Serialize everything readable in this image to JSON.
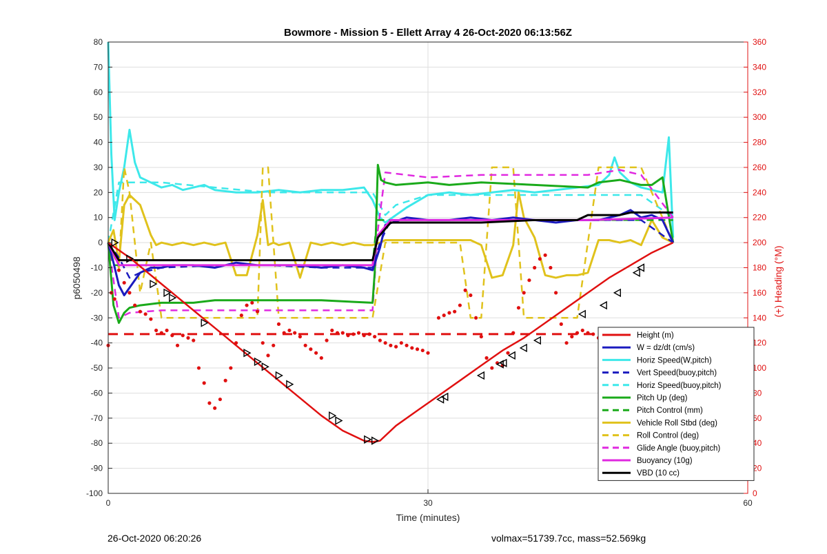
{
  "figure": {
    "footer_left": "26-Oct-2020 06:20:26",
    "footer_right": "volmax=51739.7cc, mass=52.569kg"
  },
  "colors": {
    "height": "#e01010",
    "w": "#1b1bbf",
    "horiz_speed": "#3de8ea",
    "pitch": "#1aaa1a",
    "roll": "#e0c21c",
    "glide": "#e028e0",
    "buoyancy": "#e028e0",
    "vbd": "#000000",
    "heading": "#e01010",
    "right_axis": "#e01010"
  },
  "chart_data": {
    "type": "line",
    "title": "Bowmore - Mission 5 - Ellett Array 4 26-Oct-2020 06:13:56Z",
    "xlabel": "Time (minutes)",
    "ylabel": "p6050498",
    "y2label": "(+) Heading (°M)",
    "xlim": [
      0,
      60
    ],
    "ylim": [
      -100,
      80
    ],
    "y2lim": [
      0,
      360
    ],
    "xticks": [
      0,
      30,
      60
    ],
    "yticks": [
      -100,
      -90,
      -80,
      -70,
      -60,
      -50,
      -40,
      -30,
      -20,
      -10,
      0,
      10,
      20,
      30,
      40,
      50,
      60,
      70,
      80
    ],
    "y2ticks": [
      0,
      20,
      40,
      60,
      80,
      100,
      120,
      140,
      160,
      180,
      200,
      220,
      240,
      260,
      280,
      300,
      320,
      340,
      360
    ],
    "grid": true,
    "legend_position": "bottom-right",
    "legend": [
      {
        "label": "Height (m)",
        "color": "#e01010",
        "dash": false
      },
      {
        "label": "W = dz/dt (cm/s)",
        "color": "#1b1bbf",
        "dash": false
      },
      {
        "label": "Horiz Speed(W,pitch)",
        "color": "#3de8ea",
        "dash": false
      },
      {
        "label": "Vert Speed(buoy,pitch)",
        "color": "#1b1bbf",
        "dash": true
      },
      {
        "label": "Horiz Speed(buoy,pitch)",
        "color": "#3de8ea",
        "dash": true
      },
      {
        "label": "Pitch Up (deg)",
        "color": "#1aaa1a",
        "dash": false
      },
      {
        "label": "Pitch Control (mm)",
        "color": "#1aaa1a",
        "dash": true
      },
      {
        "label": "Vehicle Roll Stbd (deg)",
        "color": "#e0c21c",
        "dash": false
      },
      {
        "label": "Roll Control (deg)",
        "color": "#e0c21c",
        "dash": true
      },
      {
        "label": "Glide Angle (buoy,pitch)",
        "color": "#e028e0",
        "dash": true
      },
      {
        "label": "Buoyancy (10g)",
        "color": "#e028e0",
        "dash": false
      },
      {
        "label": "VBD (10 cc)",
        "color": "#000000",
        "dash": false
      }
    ],
    "series": [
      {
        "name": "Height (m)",
        "axis": "left",
        "style": "solid",
        "color": "#e01010",
        "x": [
          0,
          2,
          4,
          6,
          8,
          10,
          12,
          14,
          16,
          18,
          20,
          22,
          24,
          24.8,
          25.5,
          27,
          29,
          31,
          33,
          35,
          37,
          39,
          41,
          43,
          45,
          47,
          49,
          51,
          53
        ],
        "y": [
          0,
          -6,
          -13,
          -20,
          -27,
          -34,
          -41,
          -48,
          -55,
          -62,
          -69,
          -75,
          -79,
          -79.5,
          -79,
          -73,
          -67,
          -61,
          -55,
          -49,
          -43,
          -38,
          -32,
          -26,
          -20,
          -14,
          -9,
          -4,
          0
        ]
      },
      {
        "name": "Height markers",
        "axis": "left",
        "style": "markers",
        "color": "#000000",
        "x": [
          0.6,
          2,
          4.2,
          5.5,
          6,
          9,
          13,
          14,
          14.7,
          16,
          17,
          21,
          21.6,
          24.3,
          25,
          31.2,
          31.6,
          35,
          36.8,
          37.1,
          37.9,
          39,
          40.3,
          44.5,
          46.5,
          47.8,
          49.6,
          50
        ],
        "y": [
          0,
          -6.4,
          -16.5,
          -20,
          -22,
          -32,
          -44,
          -47.5,
          -49.5,
          -53,
          -56.5,
          -69,
          -71,
          -78.5,
          -79,
          -62.5,
          -61.5,
          -53,
          -48.5,
          -48,
          -45,
          -42,
          -39,
          -28.5,
          -25,
          -20,
          -12,
          -10
        ]
      },
      {
        "name": "W = dz/dt (cm/s)",
        "axis": "left",
        "style": "solid",
        "color": "#1b1bbf",
        "x": [
          0,
          0.5,
          1,
          1.5,
          2,
          3,
          4,
          5,
          6,
          8,
          10,
          12,
          14,
          16,
          18,
          20,
          22,
          24,
          24.8,
          25.5,
          26,
          28,
          30,
          32,
          34,
          36,
          38,
          40,
          42,
          44,
          46,
          48,
          49,
          50,
          51,
          52,
          53
        ],
        "y": [
          0,
          -8,
          -17,
          -21,
          -18,
          -12,
          -10,
          -10,
          -9,
          -9,
          -10,
          -8,
          -9,
          -9,
          -9,
          -10,
          -9,
          -10,
          -11,
          -2,
          7,
          10,
          9,
          9,
          10,
          9,
          10,
          9,
          8,
          9,
          9,
          11,
          13,
          10,
          11,
          9,
          0
        ]
      },
      {
        "name": "Horiz Speed(W,pitch)",
        "axis": "left",
        "style": "solid",
        "color": "#3de8ea",
        "x": [
          0,
          0.3,
          0.6,
          1,
          1.5,
          2,
          2.5,
          3,
          4,
          5,
          6,
          7,
          8,
          9,
          10,
          12,
          14,
          16,
          18,
          20,
          22,
          24,
          24.8,
          25.5,
          26,
          28,
          30,
          32,
          34,
          36,
          38,
          40,
          42,
          44,
          46,
          47,
          47.5,
          48,
          49,
          50,
          51,
          52,
          52.6,
          53
        ],
        "y": [
          80,
          35,
          9,
          20,
          30,
          45,
          32,
          26,
          24,
          22,
          23,
          21,
          22,
          23,
          21,
          20,
          20,
          21,
          20,
          21,
          21,
          22,
          17,
          10,
          8,
          14,
          19,
          20,
          19,
          20,
          21,
          20,
          21,
          22,
          23,
          27,
          34,
          28,
          24,
          22,
          21,
          20,
          42,
          2
        ]
      },
      {
        "name": "Vert Speed(buoy,pitch)",
        "axis": "left",
        "style": "dashed",
        "color": "#1b1bbf",
        "x": [
          0,
          1,
          2,
          3,
          5,
          10,
          15,
          20,
          24.8,
          25.5,
          26.5,
          30,
          35,
          40,
          45,
          50,
          53
        ],
        "y": [
          0,
          -6,
          -14,
          -12,
          -10,
          -9,
          -9,
          -10,
          -10,
          0,
          9,
          9,
          9,
          9,
          9,
          9,
          0
        ]
      },
      {
        "name": "Horiz Speed(buoy,pitch)",
        "axis": "left",
        "style": "dashed",
        "color": "#3de8ea",
        "x": [
          0,
          1,
          2,
          5,
          10,
          15,
          20,
          24.8,
          26,
          27,
          30,
          35,
          40,
          45,
          50,
          53
        ],
        "y": [
          0,
          24,
          24,
          24,
          22,
          20,
          20,
          20,
          11,
          15,
          19,
          19,
          19,
          19,
          19,
          10
        ]
      },
      {
        "name": "Pitch Up (deg)",
        "axis": "left",
        "style": "solid",
        "color": "#1aaa1a",
        "x": [
          0,
          0.5,
          1,
          1.5,
          2,
          3,
          5,
          8,
          10,
          15,
          20,
          24.8,
          25,
          25.3,
          25.6,
          26,
          27,
          30,
          32,
          35,
          40,
          45,
          46,
          48,
          50,
          51,
          52,
          53
        ],
        "y": [
          0,
          -25,
          -32,
          -28,
          -26,
          -25,
          -24,
          -24,
          -23,
          -23,
          -23,
          -24,
          -12,
          31,
          25,
          24,
          23,
          24,
          23,
          24,
          23,
          22,
          24,
          25,
          23,
          23,
          26,
          0
        ]
      },
      {
        "name": "Pitch Control (mm)",
        "axis": "left",
        "style": "dashed",
        "color": "#1aaa1a",
        "x": [
          0,
          0.5,
          1,
          24.8,
          25.2,
          26,
          53
        ],
        "y": [
          0,
          -9,
          -9,
          -9,
          9,
          9,
          9
        ]
      },
      {
        "name": "Vehicle Roll Stbd (deg)",
        "axis": "left",
        "style": "solid",
        "color": "#e0c21c",
        "x": [
          0,
          0.5,
          1,
          1.5,
          2,
          3,
          4,
          4.5,
          5,
          6,
          7,
          8,
          9,
          10,
          11,
          12,
          13,
          14,
          14.5,
          15,
          15.5,
          16,
          17,
          18,
          19,
          20,
          21,
          22,
          23,
          24,
          24.8,
          25.5,
          26,
          28,
          30,
          34,
          35,
          36,
          37,
          38,
          38.5,
          39,
          40,
          41,
          42,
          43,
          44,
          45,
          46,
          47,
          48,
          49,
          50,
          51,
          52,
          53
        ],
        "y": [
          0,
          5,
          -8,
          15,
          19,
          15,
          3,
          -1,
          0,
          -1,
          0,
          -1,
          0,
          -1,
          0,
          -13,
          -13,
          3,
          17,
          -1,
          0,
          -1,
          0,
          -14,
          0,
          -1,
          0,
          -1,
          0,
          -1,
          -1,
          0,
          1,
          1,
          1,
          1,
          -1,
          -14,
          -13,
          -1,
          20,
          10,
          2,
          -13,
          -14,
          -13,
          -13,
          -12,
          1,
          1,
          0,
          1,
          -1,
          9,
          2,
          0
        ]
      },
      {
        "name": "Roll Control (deg)",
        "axis": "left",
        "style": "dashed",
        "color": "#e0c21c",
        "x": [
          0,
          1,
          1.5,
          2,
          3,
          4,
          5,
          6,
          8,
          10,
          12,
          14,
          14.5,
          15,
          16,
          18,
          20,
          22,
          24.8,
          26,
          28,
          30,
          33,
          34,
          35,
          36,
          38,
          39,
          40,
          42,
          44,
          45,
          46,
          48,
          50,
          53
        ],
        "y": [
          0,
          -10,
          30,
          20,
          -20,
          0,
          -30,
          -30,
          -30,
          -30,
          -30,
          -30,
          30,
          30,
          -30,
          -30,
          -30,
          -30,
          -30,
          0,
          0,
          0,
          0,
          -30,
          -30,
          30,
          30,
          -30,
          -30,
          -30,
          -30,
          0,
          30,
          30,
          30,
          0
        ]
      },
      {
        "name": "Glide Angle (buoy,pitch)",
        "axis": "left",
        "style": "dashed",
        "color": "#e028e0",
        "x": [
          0,
          1,
          2,
          5,
          10,
          15,
          20,
          24.8,
          25.3,
          26,
          28,
          30,
          35,
          40,
          45,
          48,
          50,
          53
        ],
        "y": [
          0,
          -30,
          -28,
          -27,
          -27,
          -27,
          -27,
          -27,
          5,
          28,
          27,
          26,
          27,
          27,
          27,
          29,
          27,
          10
        ]
      },
      {
        "name": "Buoyancy (10g)",
        "axis": "left",
        "style": "solid",
        "color": "#e028e0",
        "x": [
          0,
          1,
          24.8,
          25.3,
          26.5,
          45,
          53
        ],
        "y": [
          0,
          -9,
          -9,
          3,
          9,
          9,
          10
        ]
      },
      {
        "name": "VBD (10 cc)",
        "axis": "left",
        "style": "solid",
        "color": "#000000",
        "x": [
          0,
          1,
          24.8,
          25.3,
          26.5,
          30,
          35,
          40,
          44,
          45,
          48,
          49,
          53
        ],
        "y": [
          0,
          -7,
          -7,
          2,
          8,
          8,
          8,
          9,
          9,
          11,
          11,
          12,
          12
        ]
      },
      {
        "name": "Heading",
        "axis": "right",
        "style": "dots",
        "color": "#e01010",
        "x": [
          0,
          0.3,
          0.6,
          1,
          1.5,
          2,
          2.5,
          3,
          3.5,
          4,
          4.5,
          5,
          5.5,
          6,
          6.5,
          7,
          7.5,
          8,
          8.5,
          9,
          9.5,
          10,
          10.5,
          11,
          11.5,
          12,
          12.5,
          13,
          13.5,
          14,
          14.5,
          15,
          15.5,
          16,
          16.5,
          17,
          17.5,
          18,
          18.5,
          19,
          19.5,
          20,
          20.5,
          21,
          21.5,
          22,
          22.5,
          23,
          23.5,
          24,
          24.5,
          25,
          25.5,
          26,
          26.5,
          27,
          27.5,
          28,
          28.5,
          29,
          29.5,
          30,
          31,
          31.5,
          32,
          32.5,
          33,
          33.5,
          34,
          34.5,
          35,
          35.5,
          36,
          36.5,
          37,
          37.5,
          38,
          38.5,
          39,
          39.5,
          40,
          40.5,
          41,
          41.5,
          42,
          42.5,
          43,
          43.5,
          44,
          44.5,
          45,
          45.5,
          46,
          46.5,
          47,
          47.5,
          48,
          48.5,
          49,
          49.5,
          50,
          50.5,
          51,
          51.5,
          52,
          52.5
        ],
        "y": [
          118,
          160,
          155,
          178,
          168,
          160,
          150,
          145,
          143,
          139,
          130,
          128,
          130,
          126,
          118,
          126,
          124,
          122,
          100,
          88,
          72,
          68,
          75,
          90,
          100,
          120,
          142,
          150,
          152,
          145,
          120,
          110,
          118,
          135,
          128,
          130,
          128,
          125,
          118,
          115,
          112,
          108,
          122,
          130,
          128,
          128,
          126,
          127,
          128,
          126,
          127,
          125,
          122,
          120,
          118,
          117,
          120,
          118,
          116,
          115,
          114,
          112,
          140,
          142,
          144,
          145,
          150,
          162,
          158,
          140,
          125,
          108,
          100,
          104,
          102,
          112,
          128,
          148,
          160,
          170,
          180,
          187,
          190,
          180,
          160,
          135,
          120,
          125,
          128,
          130,
          128,
          127,
          124,
          126,
          124,
          126,
          124,
          126,
          124,
          122,
          120,
          124,
          125,
          124,
          120,
          115
        ]
      },
      {
        "name": "Heading reference",
        "axis": "right",
        "style": "dashed-thick",
        "color": "#e01010",
        "x": [
          0,
          60
        ],
        "y": [
          127,
          127
        ]
      }
    ]
  }
}
